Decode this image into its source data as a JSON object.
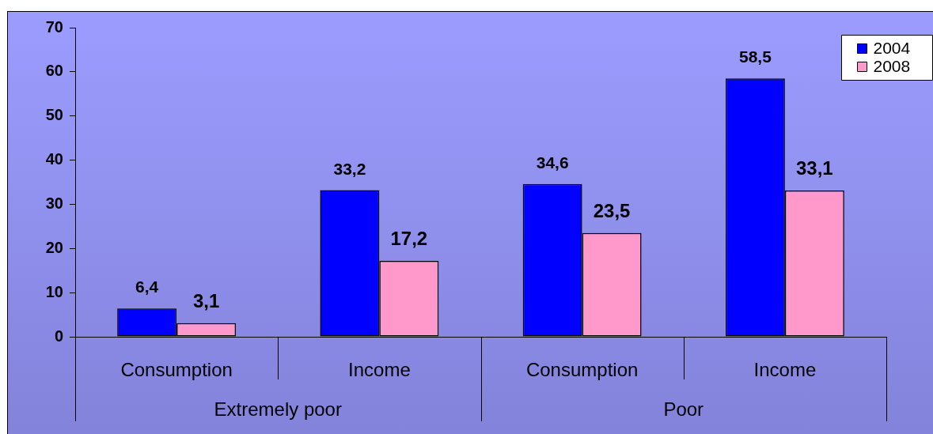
{
  "chart_data": {
    "type": "bar",
    "categories": [
      "Consumption",
      "Income",
      "Consumption",
      "Income"
    ],
    "annotations": [
      "Extremely poor",
      "Poor"
    ],
    "series": [
      {
        "name": "2004",
        "color": "#0000ff",
        "values": [
          6.4,
          33.2,
          34.6,
          58.5
        ],
        "value_labels": [
          "6,4",
          "33,2",
          "34,6",
          "58,5"
        ]
      },
      {
        "name": "2008",
        "color": "#ff99cc",
        "values": [
          3.1,
          17.2,
          23.5,
          33.1
        ],
        "value_labels": [
          "3,1",
          "17,2",
          "23,5",
          "33,1"
        ]
      }
    ],
    "ylim": [
      0,
      70
    ],
    "yticks": [
      0,
      10,
      20,
      30,
      40,
      50,
      60,
      70
    ],
    "grid": false,
    "legend": "top right"
  }
}
